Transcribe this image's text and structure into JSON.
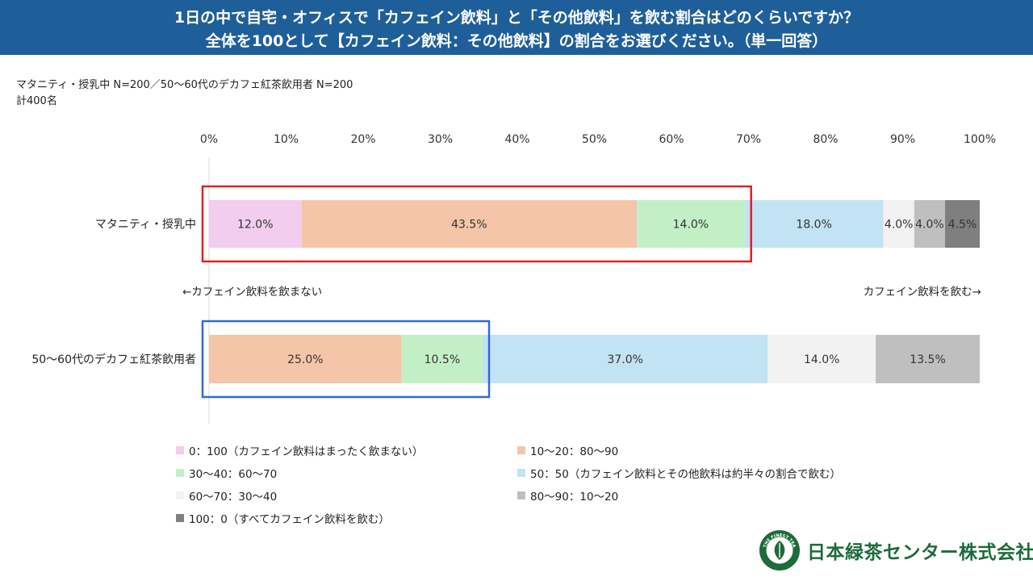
{
  "header": {
    "title_line1": "1日の中で自宅・オフィスで「カフェイン飲料」と「その他飲料」を飲む割合はどのくらいですか？",
    "title_line2": "全体を100として【カフェイン飲料：その他飲料】の割合をお選びください。（単一回答）"
  },
  "notes": {
    "sample": "マタニティ・授乳中 N=200／50～60代のデカフェ紅茶飲用者 N=200",
    "total": "計400名"
  },
  "annotations": {
    "left_arrow": "←カフェイン飲料を飲まない",
    "right_arrow": "カフェイン飲料を飲む→"
  },
  "chart_data": {
    "type": "bar",
    "orientation": "horizontal-stacked-100",
    "x_ticks": [
      "0%",
      "10%",
      "20%",
      "30%",
      "40%",
      "50%",
      "60%",
      "70%",
      "80%",
      "90%",
      "100%"
    ],
    "xlim": [
      0,
      100
    ],
    "categories": [
      "マタニティ・授乳中",
      "50～60代のデカフェ紅茶飲用者"
    ],
    "series": [
      {
        "name": "0：100（カフェイン飲料はまったく飲まない）",
        "color": "#f2cdee",
        "values": [
          12.0,
          0.0
        ]
      },
      {
        "name": "10～20：80～90",
        "color": "#f5c5a9",
        "values": [
          43.5,
          25.0
        ]
      },
      {
        "name": "30～40：60～70",
        "color": "#c3efc6",
        "values": [
          14.0,
          10.5
        ]
      },
      {
        "name": "50：50（カフェイン飲料とその他飲料は約半々の割合で飲む）",
        "color": "#c2e3f3",
        "values": [
          18.0,
          37.0
        ]
      },
      {
        "name": "60～70：30～40",
        "color": "#f2f2f2",
        "values": [
          4.0,
          14.0
        ]
      },
      {
        "name": "80～90：10～20",
        "color": "#bfbfbf",
        "values": [
          4.0,
          13.5
        ]
      },
      {
        "name": "100：0（すべてカフェイン飲料を飲む）",
        "color": "#7f7f7f",
        "values": [
          4.5,
          0.0
        ]
      }
    ],
    "legend_position": "bottom",
    "highlight_boxes": [
      {
        "row": 0,
        "from_series": 0,
        "to_series": 2,
        "color": "#e02020"
      },
      {
        "row": 1,
        "from_series": 0,
        "to_series": 2,
        "color": "#2f6bd0"
      }
    ]
  },
  "logo": {
    "icon": "tea-leaf-seal-icon",
    "seal_text": "THE FINEST TEA",
    "company": "日本緑茶センター株式会社",
    "reg_mark": "®"
  }
}
